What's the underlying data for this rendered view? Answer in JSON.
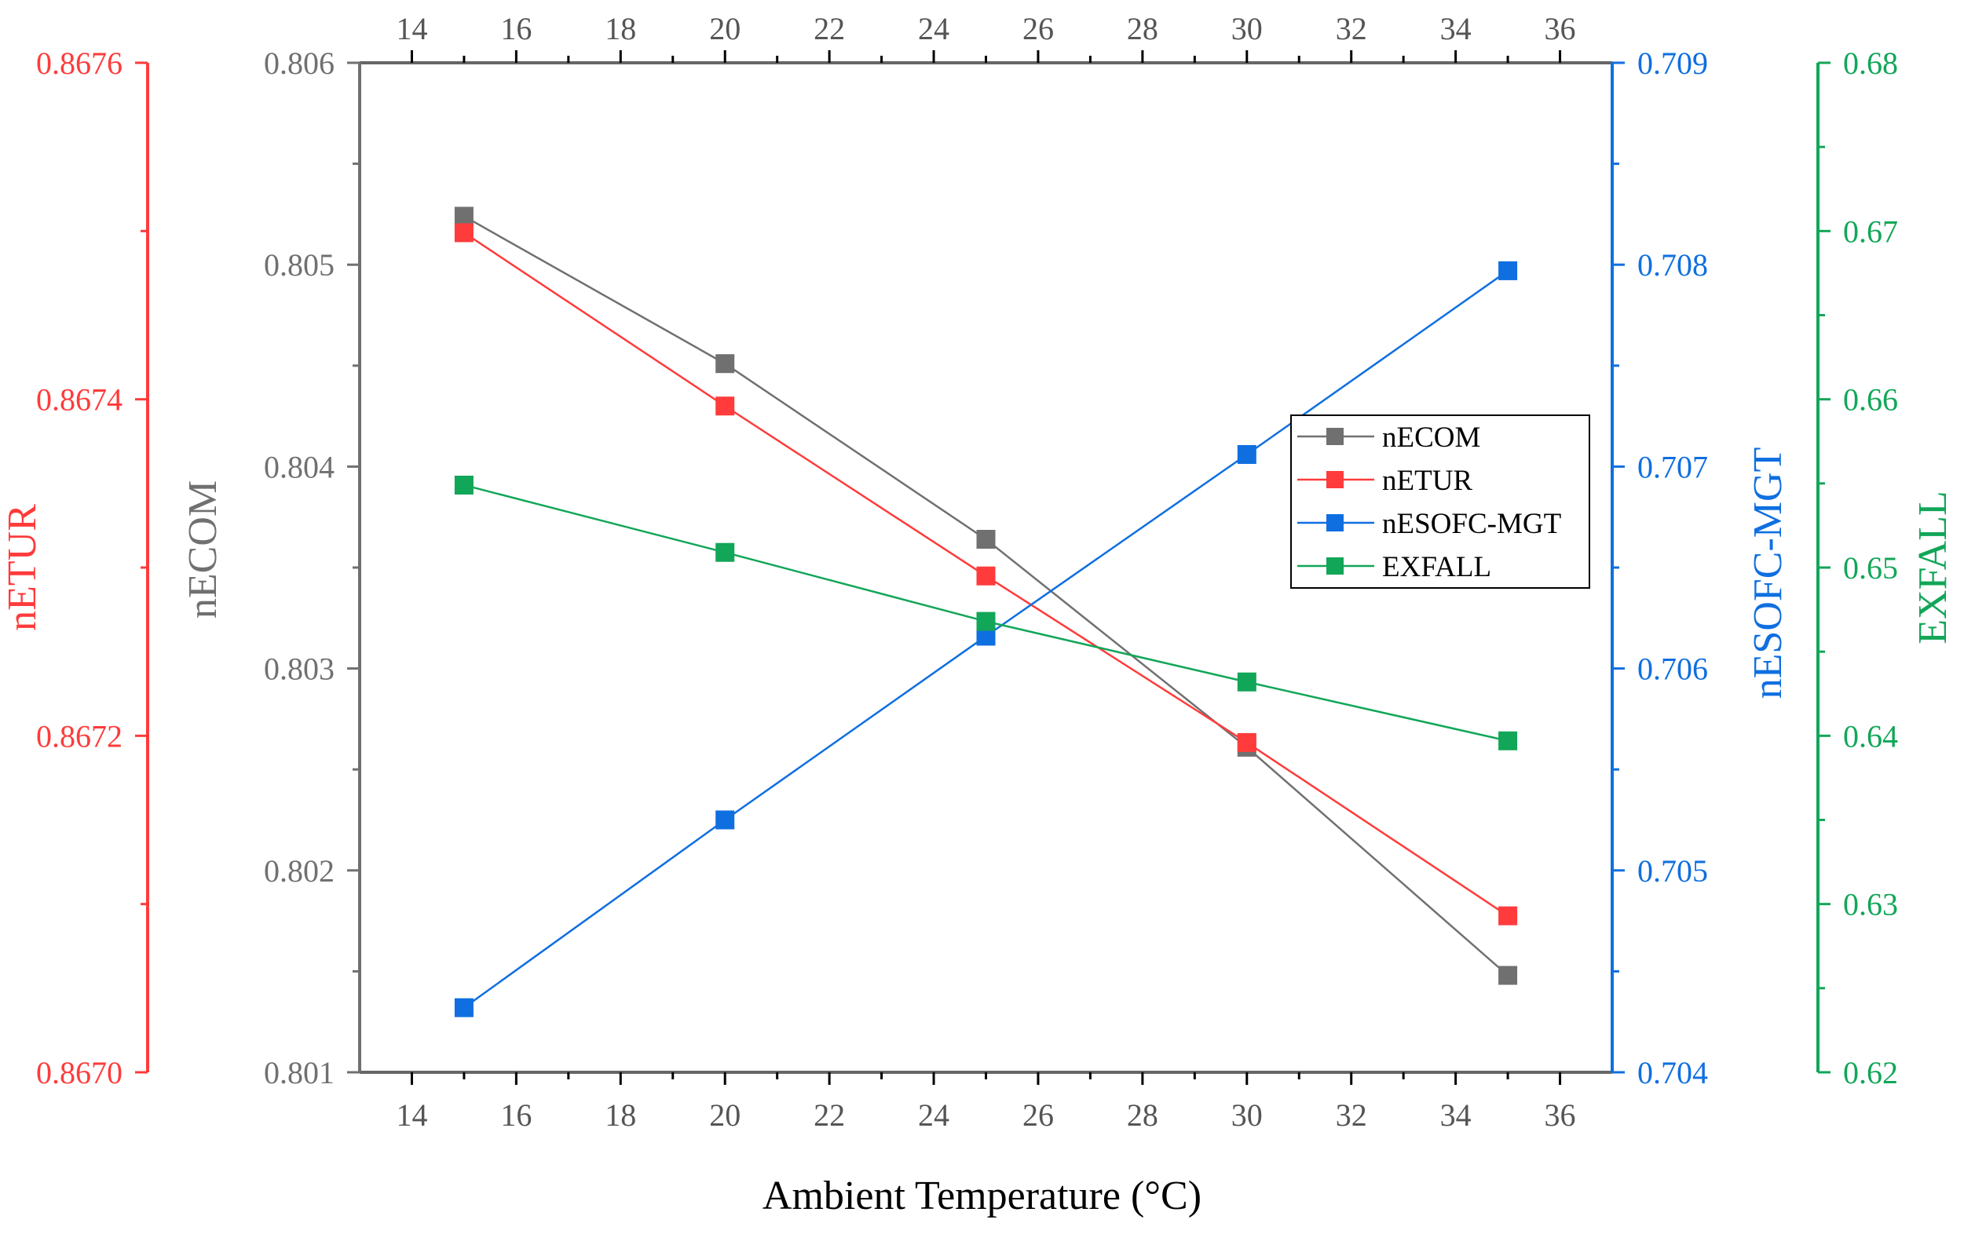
{
  "chart_data": {
    "type": "line",
    "xlabel": "Ambient Temperature (°C)",
    "x": [
      15,
      20,
      25,
      30,
      35
    ],
    "x_axis": {
      "range": [
        13,
        37
      ],
      "ticks": [
        14,
        16,
        18,
        20,
        22,
        24,
        26,
        28,
        30,
        32,
        34,
        36
      ],
      "tick_labels": [
        "14",
        "16",
        "18",
        "20",
        "22",
        "24",
        "26",
        "28",
        "30",
        "32",
        "34",
        "36"
      ],
      "mirrored_on_top": true
    },
    "series": [
      {
        "name": "nECOM",
        "axis": "nECOM",
        "color": "#707070",
        "values": [
          0.80524,
          0.80451,
          0.80364,
          0.80261,
          0.80148
        ]
      },
      {
        "name": "nETUR",
        "axis": "nETUR",
        "color": "#ff3b3b",
        "values": [
          0.867499,
          0.867396,
          0.867295,
          0.867196,
          0.867093
        ]
      },
      {
        "name": "nESOFC-MGT",
        "axis": "nESOFC-MGT",
        "color": "#0f6fe0",
        "values": [
          0.70432,
          0.70525,
          0.70616,
          0.70706,
          0.70797
        ]
      },
      {
        "name": "EXFALL",
        "axis": "EXFALL",
        "color": "#12a658",
        "values": [
          0.6549,
          0.6509,
          0.6468,
          0.6432,
          0.6397
        ]
      }
    ],
    "y_axes": [
      {
        "name": "nECOM",
        "title": "nECOM",
        "color": "#707070",
        "range": [
          0.801,
          0.806
        ],
        "ticks": [
          0.801,
          0.802,
          0.803,
          0.804,
          0.805,
          0.806
        ],
        "tick_labels": [
          "0.801",
          "0.802",
          "0.803",
          "0.804",
          "0.805",
          "0.806"
        ]
      },
      {
        "name": "nETUR",
        "title": "nETUR",
        "color": "#ff3b3b",
        "range": [
          0.867,
          0.8676
        ],
        "ticks": [
          0.867,
          0.8672,
          0.8674,
          0.8676
        ],
        "tick_labels": [
          "0.8670",
          "0.8672",
          "0.8674",
          "0.8676"
        ]
      },
      {
        "name": "nESOFC-MGT",
        "title": "nESOFC-MGT",
        "color": "#0f6fe0",
        "range": [
          0.704,
          0.709
        ],
        "ticks": [
          0.704,
          0.705,
          0.706,
          0.707,
          0.708,
          0.709
        ],
        "tick_labels": [
          "0.704",
          "0.705",
          "0.706",
          "0.707",
          "0.708",
          "0.709"
        ]
      },
      {
        "name": "EXFALL",
        "title": "EXFALL",
        "color": "#12a658",
        "range": [
          0.62,
          0.68
        ],
        "ticks": [
          0.62,
          0.63,
          0.64,
          0.65,
          0.66,
          0.67,
          0.68
        ],
        "tick_labels": [
          "0.62",
          "0.63",
          "0.64",
          "0.65",
          "0.66",
          "0.67",
          "0.68"
        ]
      }
    ],
    "legend": {
      "placement": "center-right",
      "entries": [
        "nECOM",
        "nETUR",
        "nESOFC-MGT",
        "EXFALL"
      ]
    },
    "grid": false
  }
}
